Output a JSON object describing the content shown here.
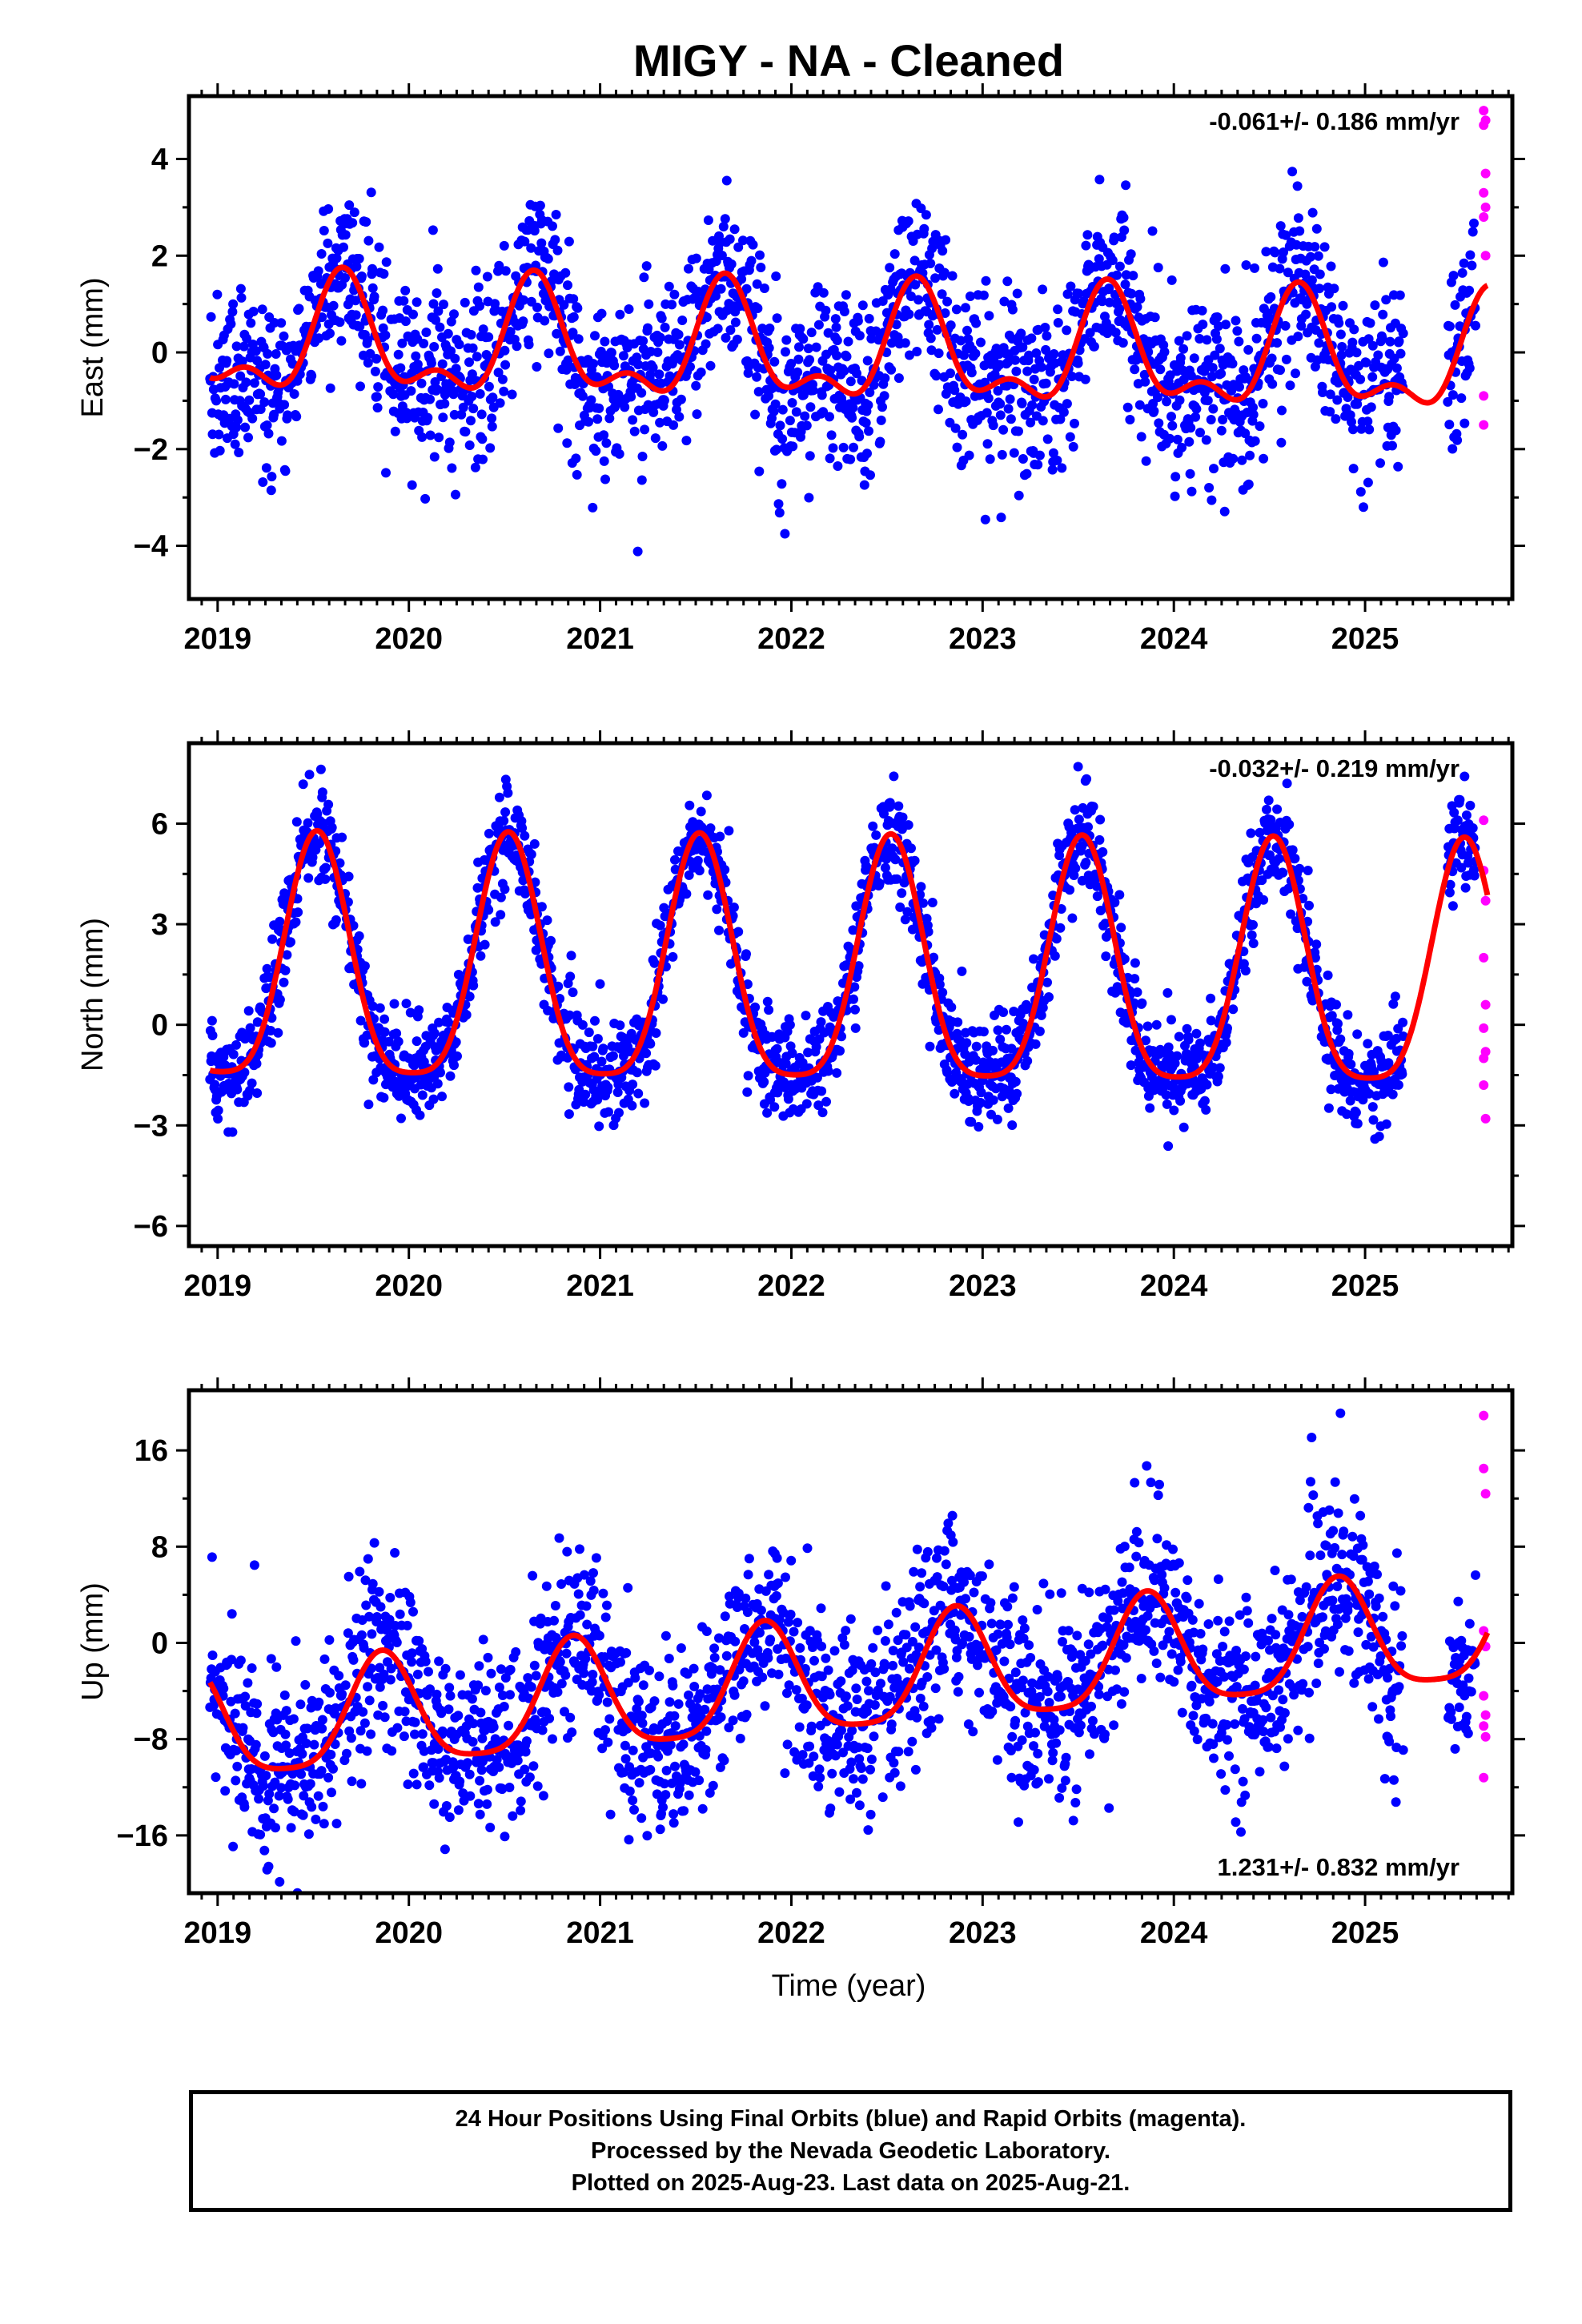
{
  "title": "MIGY  - NA - Cleaned",
  "colors": {
    "final_orbits": "#0000ff",
    "rapid_orbits": "#ff00ff",
    "model_fit": "#ff0000",
    "frame": "#000000"
  },
  "x_tick_labels": [
    "2019",
    "2020",
    "2021",
    "2022",
    "2023",
    "2024",
    "2025"
  ],
  "x_axis_label": "Time (year)",
  "footer": {
    "line1": "24 Hour Positions Using Final Orbits (blue) and Rapid Orbits (magenta).",
    "line2": "Processed by the Nevada Geodetic Laboratory.",
    "line3": "Plotted on 2025-Aug-23. Last data on 2025-Aug-21."
  },
  "chart_data": [
    {
      "type": "scatter",
      "ylabel": "East (mm)",
      "rate_label": "-0.061+/- 0.186 mm/yr",
      "xlim": [
        2018.85,
        2025.77
      ],
      "ylim": [
        -5.1,
        5.3
      ],
      "yticks": [
        "4",
        "2",
        "0",
        "−2",
        "−4"
      ],
      "ytick_values": [
        4,
        2,
        0,
        -2,
        -4
      ],
      "model": {
        "offset": 0.0,
        "trend": -0.061,
        "annual_amp": 1.05,
        "annual_peak": 0.66,
        "semiannual_amp": 0.55,
        "semiannual_peak": 0.15,
        "noise_sd": 0.9
      },
      "series": [
        {
          "name": "Final Orbits",
          "color": "#0000ff",
          "x_start": 2018.96,
          "x_end": 2025.58
        },
        {
          "name": "Rapid Orbits",
          "color": "#ff00ff",
          "x": [
            2025.62,
            2025.62,
            2025.63,
            2025.63,
            2025.62,
            2025.63,
            2025.62,
            2025.63,
            2025.62,
            2025.62
          ],
          "y": [
            5.0,
            4.7,
            4.8,
            3.7,
            3.3,
            3.0,
            2.8,
            2.0,
            -0.9,
            -1.5
          ]
        }
      ]
    },
    {
      "type": "scatter",
      "ylabel": "North (mm)",
      "rate_label": "-0.032+/- 0.219 mm/yr",
      "xlim": [
        2018.85,
        2025.77
      ],
      "ylim": [
        -6.6,
        8.4
      ],
      "yticks": [
        "6",
        "3",
        "0",
        "−3",
        "−6"
      ],
      "ytick_values": [
        6,
        3,
        0,
        -3,
        -6
      ],
      "model": {
        "offset": 1.3,
        "trend": -0.032,
        "annual_amp": 3.6,
        "annual_peak": 0.52,
        "semiannual_amp": 0.8,
        "semiannual_peak": 0.02,
        "noise_sd": 0.75
      },
      "series": [
        {
          "name": "Final Orbits",
          "color": "#0000ff",
          "x_start": 2018.96,
          "x_end": 2025.58
        },
        {
          "name": "Rapid Orbits",
          "color": "#ff00ff",
          "x": [
            2025.62,
            2025.62,
            2025.63,
            2025.62,
            2025.63,
            2025.62,
            2025.63,
            2025.62,
            2025.62,
            2025.63
          ],
          "y": [
            6.1,
            4.6,
            3.7,
            2.0,
            0.6,
            -0.1,
            -0.8,
            -1.0,
            -1.8,
            -2.8
          ]
        }
      ]
    },
    {
      "type": "scatter",
      "ylabel": "Up (mm)",
      "rate_label": "1.231+/- 0.832 mm/yr",
      "xlim": [
        2018.85,
        2025.77
      ],
      "ylim": [
        -20.8,
        21.0
      ],
      "yticks": [
        "16",
        "8",
        "0",
        "−8",
        "−16"
      ],
      "ytick_values": [
        16,
        8,
        0,
        -8,
        -16
      ],
      "model": {
        "offset": -3.2,
        "trend": 1.231,
        "annual_amp": 4.6,
        "annual_peak": 0.86,
        "semiannual_amp": 1.0,
        "semiannual_peak": 0.36,
        "noise_sd": 3.8
      },
      "series": [
        {
          "name": "Final Orbits",
          "color": "#0000ff",
          "x_start": 2018.96,
          "x_end": 2025.58
        },
        {
          "name": "Rapid Orbits",
          "color": "#ff00ff",
          "x": [
            2025.62,
            2025.62,
            2025.63,
            2025.62,
            2025.63,
            2025.62,
            2025.63,
            2025.62,
            2025.63,
            2025.62
          ],
          "y": [
            18.9,
            14.5,
            12.4,
            1.0,
            -0.3,
            -4.4,
            -6.0,
            -6.9,
            -7.8,
            -11.2
          ]
        }
      ]
    }
  ]
}
